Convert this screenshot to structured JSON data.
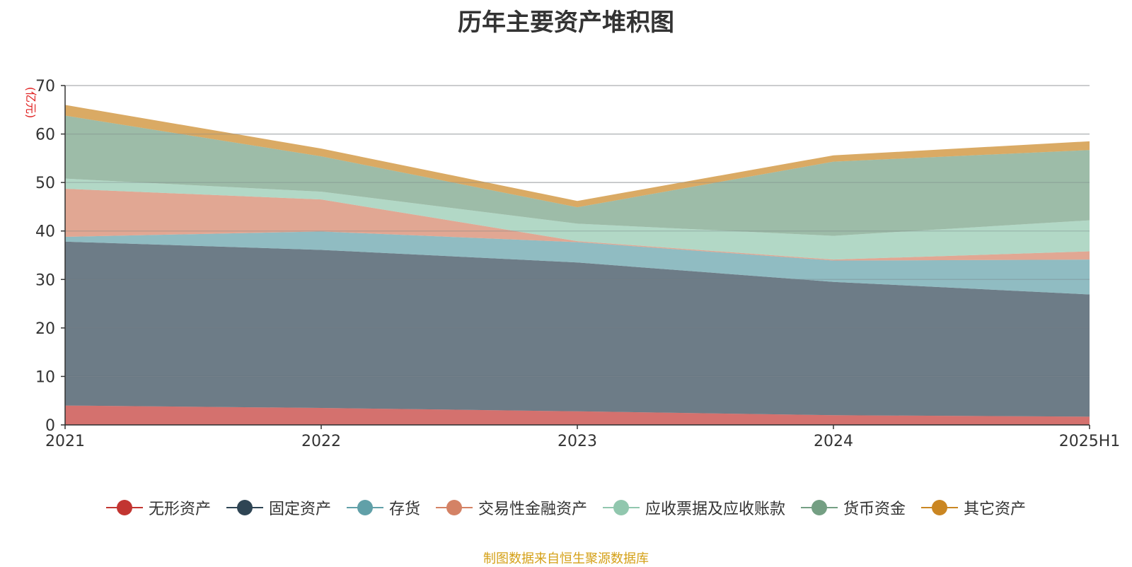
{
  "chart_data": {
    "type": "area",
    "stacked": true,
    "title": "历年主要资产堆积图",
    "y_unit_label": "(亿元)",
    "x": [
      "2021",
      "2022",
      "2023",
      "2024",
      "2025H1"
    ],
    "ylim": [
      0,
      70
    ],
    "y_ticks": [
      "0",
      "10",
      "20",
      "30",
      "40",
      "50",
      "60",
      "70"
    ],
    "grid": true,
    "legend_position": "bottom",
    "series": [
      {
        "name": "无形资产",
        "color": "#c23531",
        "values": [
          4.0,
          3.5,
          2.8,
          2.0,
          1.7
        ]
      },
      {
        "name": "固定资产",
        "color": "#2f4554",
        "values": [
          33.8,
          32.6,
          30.7,
          27.5,
          25.2
        ]
      },
      {
        "name": "存货",
        "color": "#61a0a8",
        "values": [
          1.0,
          3.8,
          4.2,
          4.4,
          7.2
        ]
      },
      {
        "name": "交易性金融资产",
        "color": "#d48265",
        "values": [
          9.9,
          6.6,
          0.2,
          0.2,
          1.7
        ]
      },
      {
        "name": "应收票据及应收账款",
        "color": "#91c7ae",
        "values": [
          2.1,
          1.6,
          3.6,
          4.9,
          6.4
        ]
      },
      {
        "name": "货币资金",
        "color": "#749f83",
        "values": [
          13.0,
          7.3,
          3.4,
          15.3,
          14.5
        ]
      },
      {
        "name": "其它资产",
        "color": "#ca8622",
        "values": [
          2.2,
          1.6,
          1.3,
          1.3,
          1.8
        ]
      }
    ]
  },
  "source_note": "制图数据来自恒生聚源数据库"
}
